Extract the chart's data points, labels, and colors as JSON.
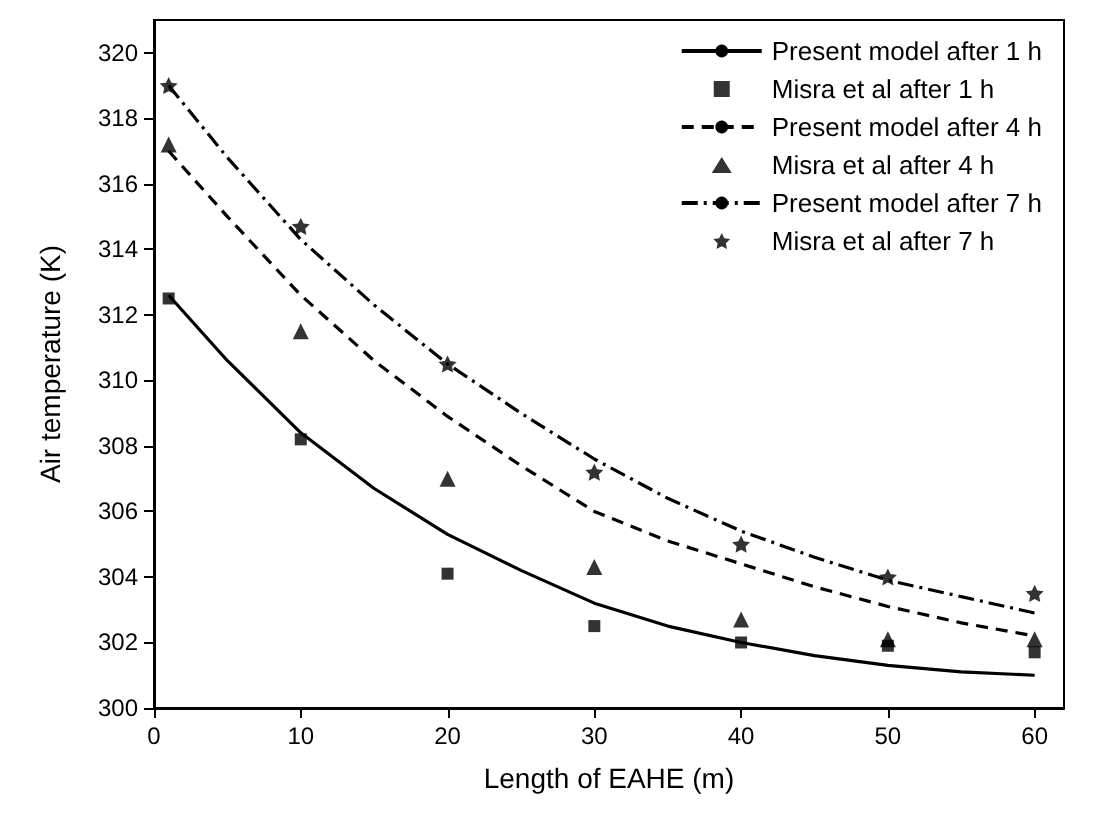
{
  "chart_data": {
    "type": "line",
    "xlabel": "Length of EAHE (m)",
    "ylabel": "Air temperature (K)",
    "xlim": [
      0,
      62
    ],
    "xticks": [
      0,
      10,
      20,
      30,
      40,
      50,
      60
    ],
    "ylim": [
      300,
      321
    ],
    "yticks": [
      300,
      302,
      304,
      306,
      308,
      310,
      312,
      314,
      316,
      318,
      320
    ],
    "grid": false,
    "legend": "top right",
    "series": [
      {
        "name": "Present model after 1 h",
        "type": "line",
        "line_style": "solid",
        "marker": "none",
        "color": "#000000",
        "x": [
          1,
          5,
          10,
          15,
          20,
          25,
          30,
          35,
          40,
          45,
          50,
          55,
          60
        ],
        "values": [
          312.6,
          310.6,
          308.4,
          306.7,
          305.3,
          304.2,
          303.2,
          302.5,
          302.0,
          301.6,
          301.3,
          301.1,
          301.0
        ]
      },
      {
        "name": "Misra et al after 1 h",
        "type": "scatter",
        "marker": "square",
        "color": "#000000",
        "x": [
          1,
          10,
          20,
          30,
          40,
          50,
          60
        ],
        "values": [
          312.5,
          308.2,
          304.1,
          302.5,
          302.0,
          301.9,
          301.7
        ]
      },
      {
        "name": "Present model after 4 h",
        "type": "line",
        "line_style": "dashed",
        "marker": "none",
        "color": "#000000",
        "x": [
          1,
          5,
          10,
          15,
          20,
          25,
          30,
          35,
          40,
          45,
          50,
          55,
          60
        ],
        "values": [
          317.0,
          315.0,
          312.6,
          310.6,
          308.9,
          307.4,
          306.0,
          305.1,
          304.4,
          303.7,
          303.1,
          302.6,
          302.2
        ]
      },
      {
        "name": "Misra et al after 4 h",
        "type": "scatter",
        "marker": "triangle",
        "color": "#000000",
        "x": [
          1,
          10,
          20,
          30,
          40,
          50,
          60
        ],
        "values": [
          317.2,
          311.5,
          307.0,
          304.3,
          302.7,
          302.1,
          302.1
        ]
      },
      {
        "name": "Present model after 7 h",
        "type": "line",
        "line_style": "dashdot",
        "marker": "none",
        "color": "#000000",
        "x": [
          1,
          5,
          10,
          15,
          20,
          25,
          30,
          35,
          40,
          45,
          50,
          55,
          60
        ],
        "values": [
          319.0,
          316.8,
          314.3,
          312.3,
          310.5,
          309.0,
          307.6,
          306.4,
          305.4,
          304.6,
          303.9,
          303.4,
          302.9
        ]
      },
      {
        "name": "Misra et al after 7 h",
        "type": "scatter",
        "marker": "star",
        "color": "#000000",
        "x": [
          1,
          10,
          20,
          30,
          40,
          50,
          60
        ],
        "values": [
          319.0,
          314.7,
          310.5,
          307.2,
          305.0,
          304.0,
          303.5
        ]
      }
    ]
  }
}
